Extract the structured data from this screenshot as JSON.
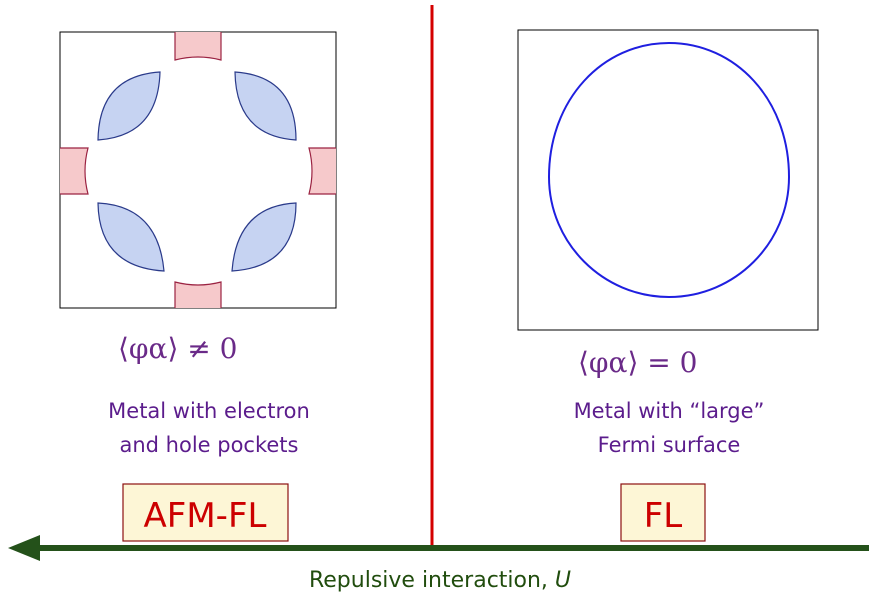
{
  "left_panel": {
    "order_parameter": "⟨φα⟩ ≠ 0",
    "description_line1": "Metal with electron",
    "description_line2": "and hole pockets",
    "phase_label": "AFM-FL"
  },
  "right_panel": {
    "order_parameter": "⟨φα⟩ = 0",
    "description_line1": "Metal with “large”",
    "description_line2": "Fermi surface",
    "phase_label": "FL"
  },
  "axis": {
    "label": "Repulsive interaction, ",
    "label_var": "U"
  },
  "colors": {
    "electron_pocket_fill": "#c6d3f2",
    "electron_pocket_stroke": "#2a3a8a",
    "hole_pocket_fill": "#f6c9cb",
    "hole_pocket_stroke": "#9b2342",
    "fermi_surface": "#1f1fe0",
    "phase_boundary": "#d40000",
    "axis_arrow": "#24511a",
    "label_box_fill": "#fdf6d6",
    "label_box_stroke": "#8c1010"
  }
}
